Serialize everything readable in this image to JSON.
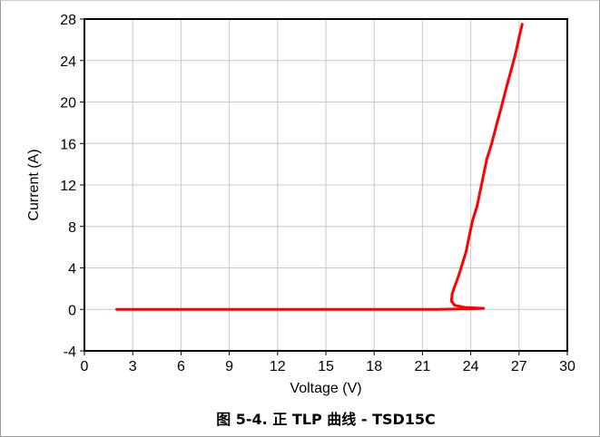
{
  "caption": "图 5-4. 正 TLP 曲线 - TSD15C",
  "chart_data": {
    "type": "line",
    "title": "",
    "xlabel": "Voltage (V)",
    "ylabel": "Current (A)",
    "xlim": [
      0,
      30
    ],
    "ylim": [
      -4,
      28
    ],
    "xticks": [
      0,
      3,
      6,
      9,
      12,
      15,
      18,
      21,
      24,
      27,
      30
    ],
    "yticks": [
      -4,
      0,
      4,
      8,
      12,
      16,
      20,
      24,
      28
    ],
    "grid": true,
    "legend": "none",
    "series": [
      {
        "color": "#ff0000",
        "x": [
          2.0,
          6.0,
          10.0,
          14.0,
          18.0,
          22.0,
          23.2,
          24.0,
          24.8,
          23.6,
          23.0,
          22.8,
          22.85,
          22.95,
          23.1,
          23.3,
          23.5,
          23.7,
          23.9,
          24.1,
          24.4,
          24.6,
          24.8,
          25.0,
          25.3,
          25.6,
          25.9,
          26.2,
          26.5,
          26.8,
          27.0,
          27.2
        ],
        "y": [
          0.0,
          0.0,
          0.0,
          0.0,
          0.0,
          0.0,
          0.05,
          0.05,
          0.1,
          0.2,
          0.4,
          0.8,
          1.5,
          2.0,
          2.6,
          3.5,
          4.5,
          5.5,
          7.0,
          8.5,
          10.0,
          11.5,
          13.0,
          14.5,
          16.0,
          17.8,
          19.5,
          21.3,
          23.0,
          24.8,
          26.2,
          27.5
        ]
      }
    ]
  }
}
